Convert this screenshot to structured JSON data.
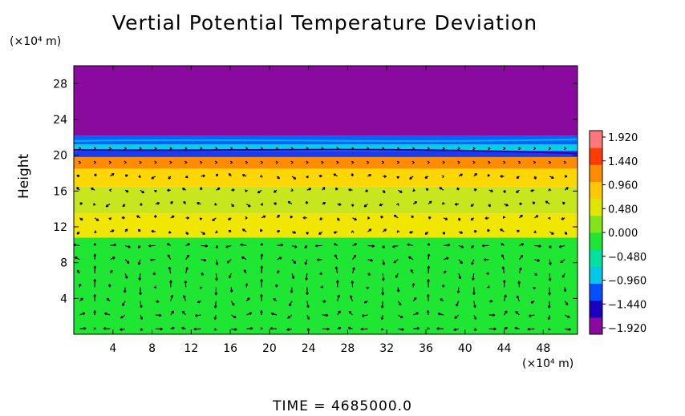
{
  "chart_data": {
    "type": "contour",
    "title": "Vertial Potential Temperature Deviation",
    "ylabel": "Height",
    "x_unit_label": "(×10⁴ m)",
    "y_unit_label": "(×10⁴ m)",
    "xlim": [
      0,
      51.5
    ],
    "ylim": [
      0,
      30
    ],
    "x_ticks": [
      "4",
      "8",
      "12",
      "16",
      "20",
      "24",
      "28",
      "32",
      "36",
      "40",
      "44",
      "48"
    ],
    "y_ticks": [
      "4",
      "8",
      "12",
      "16",
      "20",
      "24",
      "28"
    ],
    "x_tick_values": [
      4,
      8,
      12,
      16,
      20,
      24,
      28,
      32,
      36,
      40,
      44,
      48
    ],
    "y_tick_values": [
      4,
      8,
      12,
      16,
      20,
      24,
      28
    ],
    "colorbar": {
      "min": -1.92,
      "max": 1.92,
      "labels": [
        "1.920",
        "1.440",
        "0.960",
        "0.480",
        "0.000",
        "−0.480",
        "−0.960",
        "−1.440",
        "−1.920"
      ],
      "label_values": [
        1.92,
        1.44,
        0.96,
        0.48,
        0.0,
        -0.48,
        -0.96,
        -1.44,
        -1.92
      ],
      "colors": [
        "#8a0aa0",
        "#1a00c0",
        "#0050ff",
        "#00c8e6",
        "#00e0a0",
        "#1ee632",
        "#80e619",
        "#e0e600",
        "#ffc800",
        "#ff8c00",
        "#ff3c00",
        "#ff7878"
      ]
    },
    "field_bands": [
      {
        "from_y": 0,
        "to_y": 10.8,
        "value": 0.1,
        "color": "#1ee632"
      },
      {
        "from_y": 10.8,
        "to_y": 13.5,
        "value": 0.75,
        "color": "#f0e600"
      },
      {
        "from_y": 13.5,
        "to_y": 16.5,
        "value": 0.65,
        "color": "#c8e61e"
      },
      {
        "from_y": 16.5,
        "to_y": 18.5,
        "value": 1.0,
        "color": "#ffd700"
      },
      {
        "from_y": 18.5,
        "to_y": 19.8,
        "value": 1.25,
        "color": "#ff8c00"
      },
      {
        "from_y": 19.8,
        "to_y": 20.5,
        "value": -1.2,
        "color": "#1a3cf0"
      },
      {
        "from_y": 20.5,
        "to_y": 21.2,
        "value": -0.3,
        "color": "#00d2e6"
      },
      {
        "from_y": 21.2,
        "to_y": 22.2,
        "value": -0.9,
        "color": "#0064ff"
      },
      {
        "from_y": 22.2,
        "to_y": 30,
        "value": -1.92,
        "color": "#8a0aa0"
      }
    ],
    "vector_field": {
      "x_spacing": 1.55,
      "y_spacing": 1.55,
      "notes": "wind vectors overlaid on contour field; circulation cells below 11"
    }
  },
  "footer": {
    "time_text": "TIME  =  4685000.0"
  }
}
